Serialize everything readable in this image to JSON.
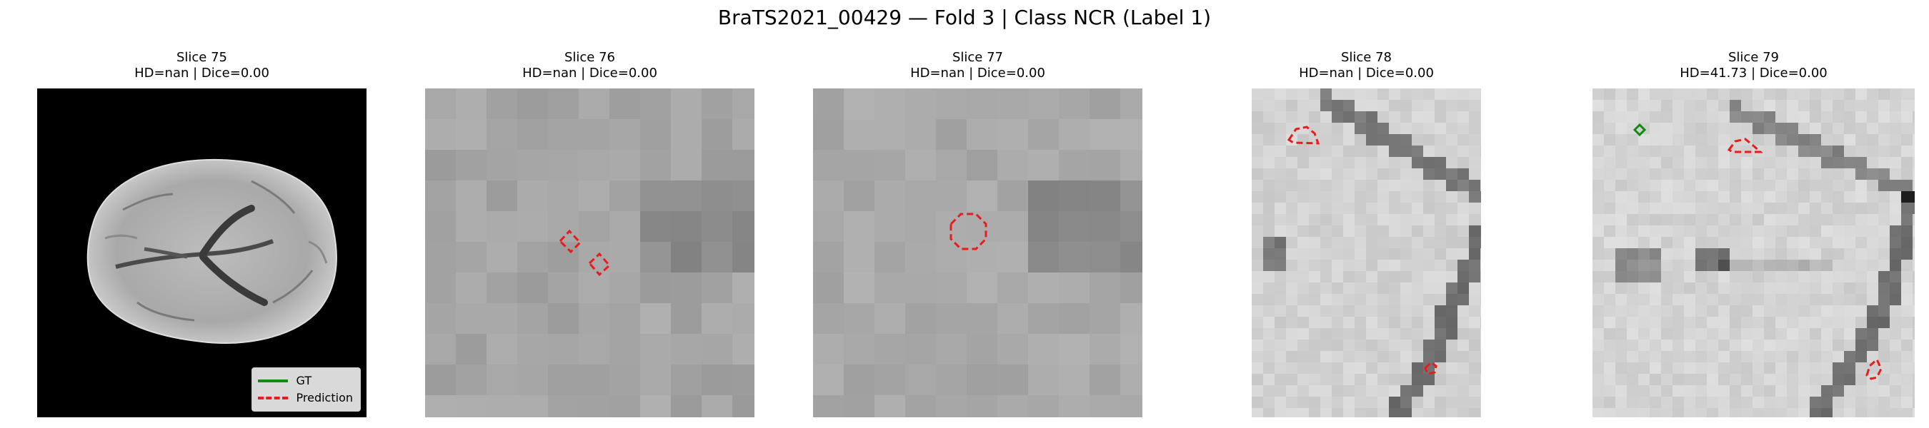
{
  "figure": {
    "title": "BraTS2021_00429 — Fold 3 | Class NCR (Label 1)"
  },
  "colors": {
    "gt": "#128a12",
    "prediction": "#e81c1c"
  },
  "panels": [
    {
      "slice": "Slice 75",
      "metrics": "HD=nan | Dice=0.00"
    },
    {
      "slice": "Slice 76",
      "metrics": "HD=nan | Dice=0.00"
    },
    {
      "slice": "Slice 77",
      "metrics": "HD=nan | Dice=0.00"
    },
    {
      "slice": "Slice 78",
      "metrics": "HD=nan | Dice=0.00"
    },
    {
      "slice": "Slice 79",
      "metrics": "HD=41.73 | Dice=0.00"
    }
  ],
  "legend": {
    "gt_label": "GT",
    "prediction_label": "Prediction"
  }
}
